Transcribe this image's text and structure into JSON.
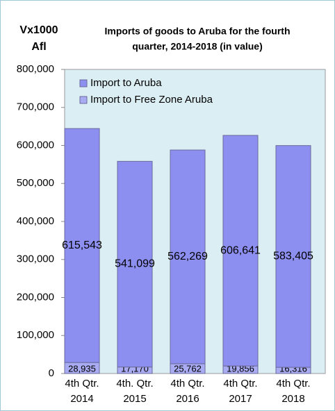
{
  "chart_data": {
    "type": "stacked_bar",
    "title": [
      "Imports of goods to Aruba for the fourth",
      "quarter, 2014-2018 (in value)"
    ],
    "ylabel": [
      "Vx1000",
      "Afl"
    ],
    "categories": [
      [
        "4th Qtr.",
        "2014"
      ],
      [
        "4th. Qtr.",
        "2015"
      ],
      [
        "4th Qtr.",
        "2016"
      ],
      [
        "4th Qtr.",
        "2017"
      ],
      [
        "4th Qtr.",
        "2018"
      ]
    ],
    "series": [
      {
        "name": "Import to Free Zone Aruba",
        "color": "#a9acf2",
        "values": [
          28935,
          17170,
          25762,
          19856,
          16316
        ],
        "value_labels": [
          "28,935",
          "17,170",
          "25,762",
          "19,856",
          "16,316"
        ]
      },
      {
        "name": "Import to Aruba",
        "color": "#8c8ff0",
        "values": [
          615543,
          541099,
          562269,
          606641,
          583405
        ],
        "value_labels": [
          "615,543",
          "541,099",
          "562,269",
          "606,641",
          "583,405"
        ]
      }
    ],
    "legend_order": [
      1,
      0
    ],
    "ylim": [
      0,
      800000
    ],
    "yticks": [
      0,
      {
        "value": 100000,
        "label": "100,000"
      },
      {
        "value": 200000,
        "label": "200,000"
      },
      {
        "value": 300000,
        "label": "300,000"
      },
      {
        "value": 400000,
        "label": "400,000"
      },
      {
        "value": 500000,
        "label": "500,000"
      },
      {
        "value": 600000,
        "label": "600,000"
      },
      {
        "value": 700000,
        "label": "700,000"
      },
      {
        "value": 800000,
        "label": "800,000"
      }
    ]
  }
}
